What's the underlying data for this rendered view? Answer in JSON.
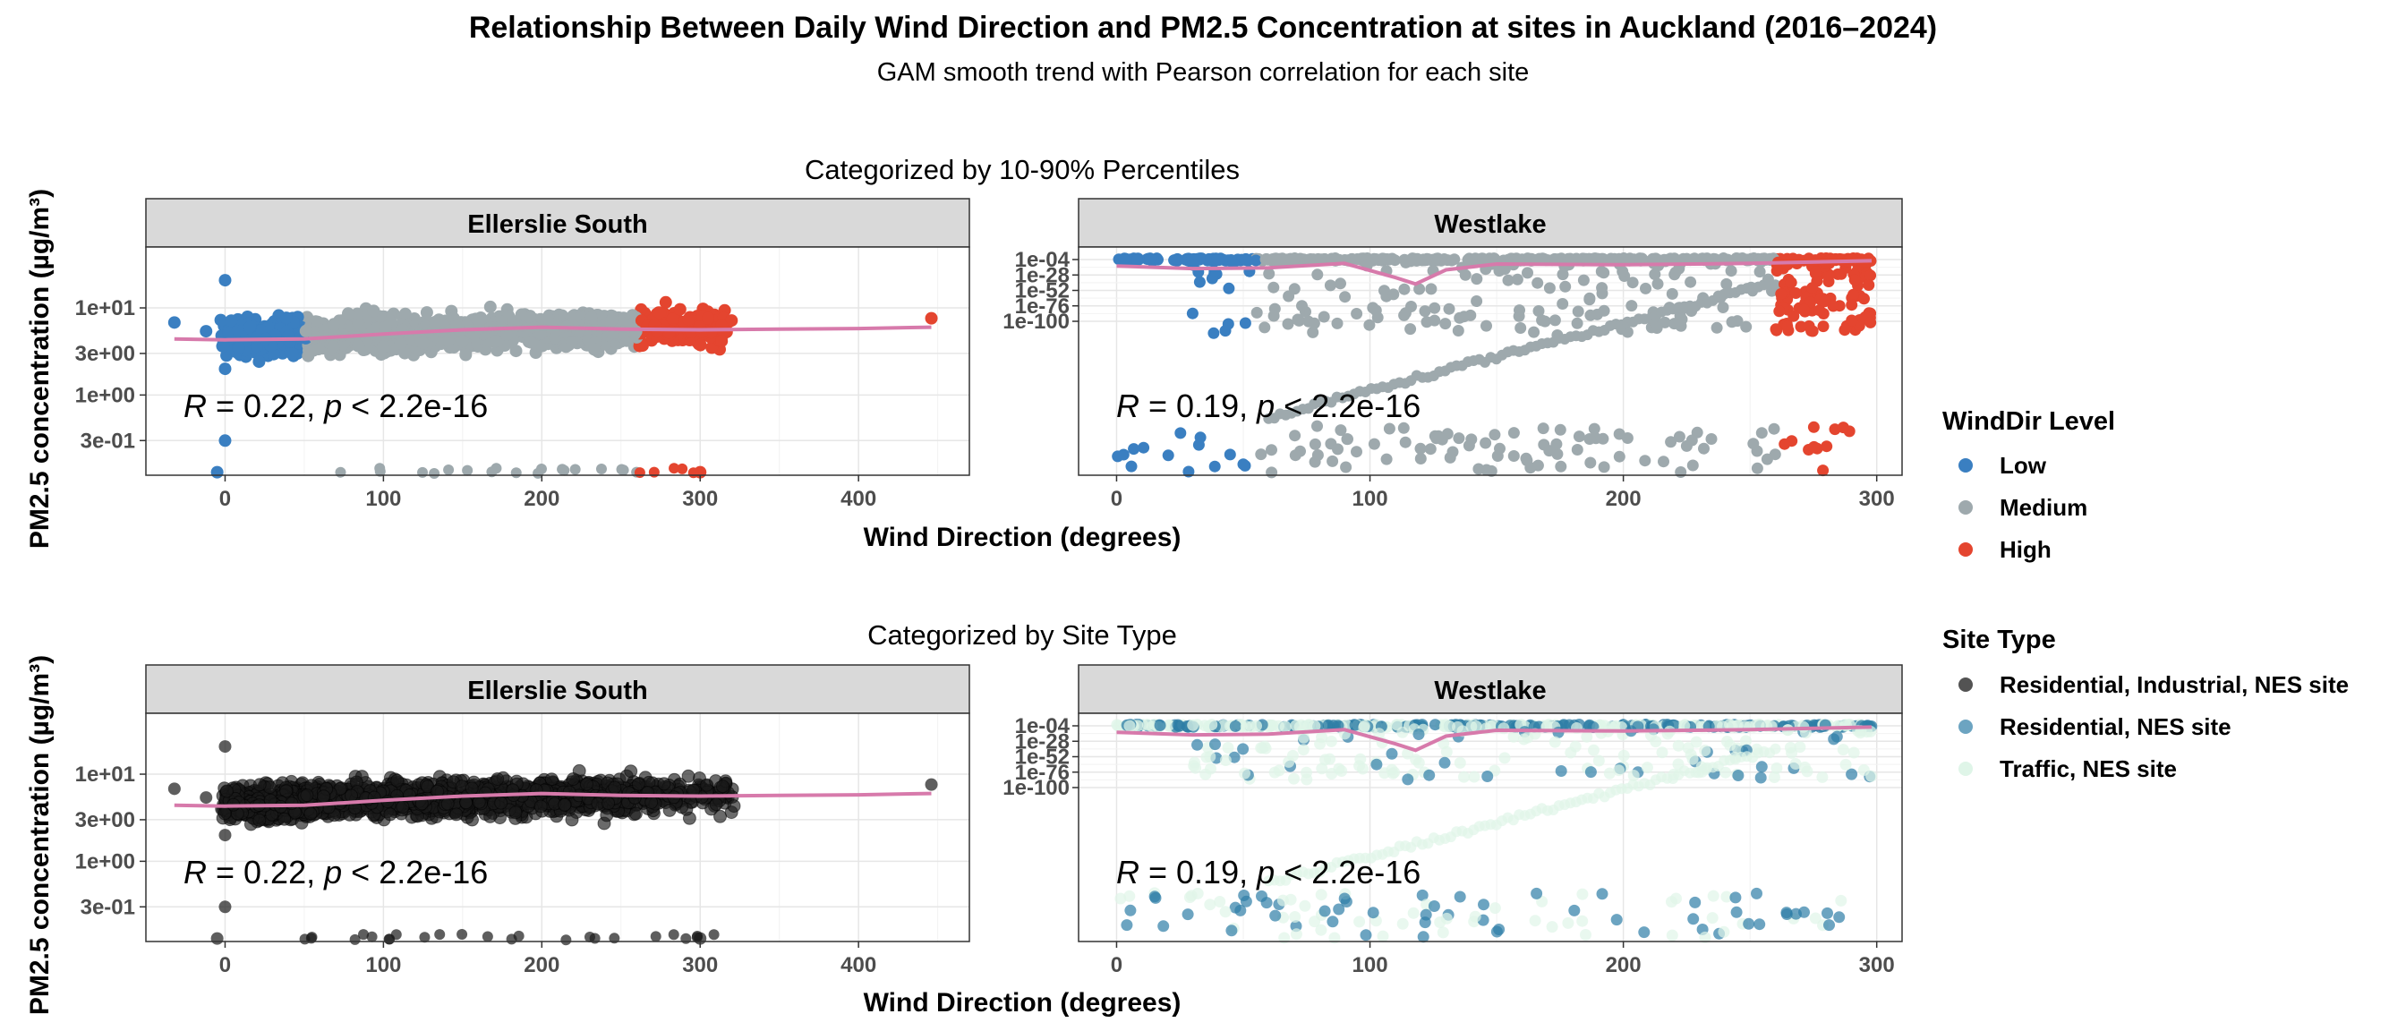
{
  "title": "Relationship Between Daily Wind Direction and PM2.5 Concentration at sites in Auckland (2016–2024)",
  "subtitle": "GAM smooth trend with Pearson correlation for each site",
  "rows": [
    {
      "title": "Categorized by 10-90% Percentiles",
      "xlabel": "Wind Direction (degrees)"
    },
    {
      "title": "Categorized by Site Type",
      "xlabel": "Wind Direction (degrees)"
    }
  ],
  "ylabel": "PM2.5  concentration (µg/m³)",
  "panels": [
    {
      "site": "Ellerslie South"
    },
    {
      "site": "Westlake"
    }
  ],
  "legends": [
    {
      "title": "WindDir Level",
      "items": [
        {
          "label": "Low",
          "color": "#3a7fc1"
        },
        {
          "label": "Medium",
          "color": "#9ea9ad"
        },
        {
          "label": "High",
          "color": "#e4452f"
        }
      ]
    },
    {
      "title": "Site Type",
      "items": [
        {
          "label": "Residential, Industrial, NES site",
          "color": "#1a1a1a"
        },
        {
          "label": "Residential, NES site",
          "color": "#2e7ea6"
        },
        {
          "label": "Traffic, NES site",
          "color": "#dff5e8"
        }
      ]
    }
  ],
  "annotations": [
    {
      "site": "Ellerslie South",
      "r": "0.22",
      "p": "2.2e-16"
    },
    {
      "site": "Westlake",
      "r": "0.19",
      "p": "2.2e-16"
    }
  ],
  "chart_data": [
    {
      "type": "scatter",
      "title": "Ellerslie South",
      "xlabel": "Wind Direction (degrees)",
      "ylabel": "PM2.5  concentration (µg/m³)",
      "y_scale": "log",
      "xlim": [
        -50,
        470
      ],
      "ylim": [
        0.12,
        50
      ],
      "x_ticks": [
        0,
        100,
        200,
        300,
        400
      ],
      "y_ticks": [
        {
          "value": 10,
          "label": "1e+01"
        },
        {
          "value": 3,
          "label": "3e+00"
        },
        {
          "value": 1,
          "label": "1e+00"
        },
        {
          "value": 0.3,
          "label": "3e-01"
        }
      ],
      "grid": true,
      "series": [
        {
          "name": "Low",
          "x_range": [
            0,
            51
          ],
          "outliers": [
            [
              -32,
              6.8
            ],
            [
              -12,
              5.4
            ],
            [
              0,
              20.8
            ],
            [
              0,
              2.0
            ],
            [
              0,
              0.3
            ],
            [
              -5,
              0.13
            ]
          ]
        },
        {
          "name": "Medium",
          "x_range": [
            51,
            260
          ]
        },
        {
          "name": "High",
          "x_range": [
            260,
            320
          ],
          "outliers": [
            [
              446,
              7.6
            ],
            [
              300,
              0.13
            ]
          ]
        }
      ],
      "smooth": {
        "x": [
          -32,
          0,
          50,
          100,
          150,
          200,
          250,
          300,
          350,
          400,
          446
        ],
        "y": [
          4.4,
          4.3,
          4.4,
          5.0,
          5.6,
          6.0,
          5.7,
          5.6,
          5.7,
          5.8,
          6.0
        ]
      },
      "annotation": "R = 0.22, p < 2.2e-16"
    },
    {
      "type": "scatter",
      "title": "Westlake",
      "xlabel": "Wind Direction (degrees)",
      "y_scale": "log",
      "xlim": [
        -15,
        310
      ],
      "y_ticks": [
        {
          "value": "1e-04",
          "label": "1e-04"
        },
        {
          "value": "1e-28",
          "label": "1e-28"
        },
        {
          "value": "1e-52",
          "label": "1e-52"
        },
        {
          "value": "1e-76",
          "label": "1e-76"
        },
        {
          "value": "1e-100",
          "label": "1e-100"
        }
      ],
      "grid": true,
      "series": [
        {
          "name": "Low",
          "x_range": [
            0,
            55
          ]
        },
        {
          "name": "Medium",
          "x_range": [
            55,
            260
          ]
        },
        {
          "name": "High",
          "x_range": [
            260,
            298
          ]
        }
      ],
      "annotation": "R = 0.19, p < 2.2e-16"
    },
    {
      "type": "scatter",
      "title": "Ellerslie South",
      "legend_title": "Site Type",
      "series": [
        {
          "name": "Residential, Industrial, NES site",
          "x_range": [
            -32,
            446
          ]
        }
      ],
      "annotation": "R = 0.22, p < 2.2e-16"
    },
    {
      "type": "scatter",
      "title": "Westlake",
      "legend_title": "Site Type",
      "series": [
        {
          "name": "Residential, NES site",
          "x_range": [
            0,
            298
          ]
        },
        {
          "name": "Traffic, NES site",
          "x_range": [
            0,
            298
          ]
        }
      ],
      "annotation": "R = 0.19, p < 2.2e-16"
    }
  ]
}
